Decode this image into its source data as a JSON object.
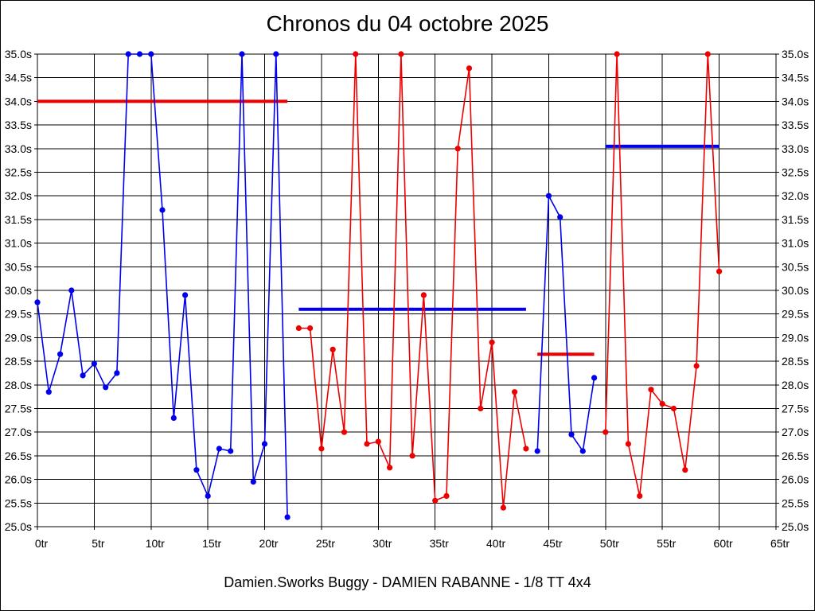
{
  "title": "Chronos du 04 octobre 2025",
  "subtitle": "Damien.Sworks Buggy - DAMIEN RABANNE - 1/8 TT 4x4",
  "colors": {
    "blue": "#0000ee",
    "red": "#ee0000",
    "grid": "#000000",
    "text": "#000000",
    "background": "#ffffff"
  },
  "chart_data": {
    "type": "line",
    "title": "Chronos du 04 octobre 2025",
    "footer": "Damien.Sworks Buggy - DAMIEN RABANNE - 1/8 TT 4x4",
    "x_unit": "tr",
    "y_unit": "s",
    "xlim": [
      0,
      65
    ],
    "ylim": [
      25.0,
      35.0
    ],
    "x_tick_step": 5,
    "y_tick_step": 0.5,
    "grid": true,
    "legend": "none",
    "x_ticks": [
      "0tr",
      "5tr",
      "10tr",
      "15tr",
      "20tr",
      "25tr",
      "30tr",
      "35tr",
      "40tr",
      "45tr",
      "50tr",
      "55tr",
      "60tr",
      "65tr"
    ],
    "y_ticks": [
      "35.0s",
      "34.5s",
      "34.0s",
      "33.5s",
      "33.0s",
      "32.5s",
      "32.0s",
      "31.5s",
      "31.0s",
      "30.5s",
      "30.0s",
      "29.5s",
      "29.0s",
      "28.5s",
      "28.0s",
      "27.5s",
      "27.0s",
      "26.5s",
      "26.0s",
      "25.5s",
      "25.0s"
    ],
    "series": [
      {
        "name": "stint-1-blue",
        "color": "blue",
        "start_lap": 0,
        "values": [
          29.75,
          27.85,
          28.65,
          30.0,
          28.2,
          28.45,
          27.95,
          28.25,
          35.0,
          35.0,
          35.0,
          31.7,
          27.3,
          29.9,
          26.2,
          25.65,
          26.65,
          26.6,
          35.0,
          25.95,
          26.75,
          35.0,
          25.2
        ]
      },
      {
        "name": "stint-2-red",
        "color": "red",
        "start_lap": 23,
        "values": [
          29.2,
          29.2,
          26.65,
          28.75,
          27.0,
          35.0,
          26.75,
          26.8,
          26.25,
          35.0,
          26.5,
          29.9,
          25.55,
          25.65,
          33.0,
          34.7,
          27.5,
          28.9,
          25.4,
          27.85,
          26.65
        ]
      },
      {
        "name": "stint-3-blue",
        "color": "blue",
        "start_lap": 44,
        "values": [
          26.6,
          32.0,
          31.55,
          26.95,
          26.6,
          28.15
        ]
      },
      {
        "name": "stint-4-red",
        "color": "red",
        "start_lap": 50,
        "values": [
          27.0,
          35.0,
          26.75,
          25.65,
          27.9,
          27.6,
          27.5,
          26.2,
          28.4,
          35.0,
          30.4
        ]
      }
    ],
    "average_lines": [
      {
        "name": "average-line-1",
        "color": "red",
        "value": 34.0,
        "from_lap": 0,
        "to_lap": 22
      },
      {
        "name": "average-line-2",
        "color": "blue",
        "value": 29.6,
        "from_lap": 23,
        "to_lap": 43
      },
      {
        "name": "average-line-3",
        "color": "red",
        "value": 28.65,
        "from_lap": 44,
        "to_lap": 49
      },
      {
        "name": "average-line-4",
        "color": "blue",
        "value": 33.05,
        "from_lap": 50,
        "to_lap": 60
      }
    ]
  }
}
